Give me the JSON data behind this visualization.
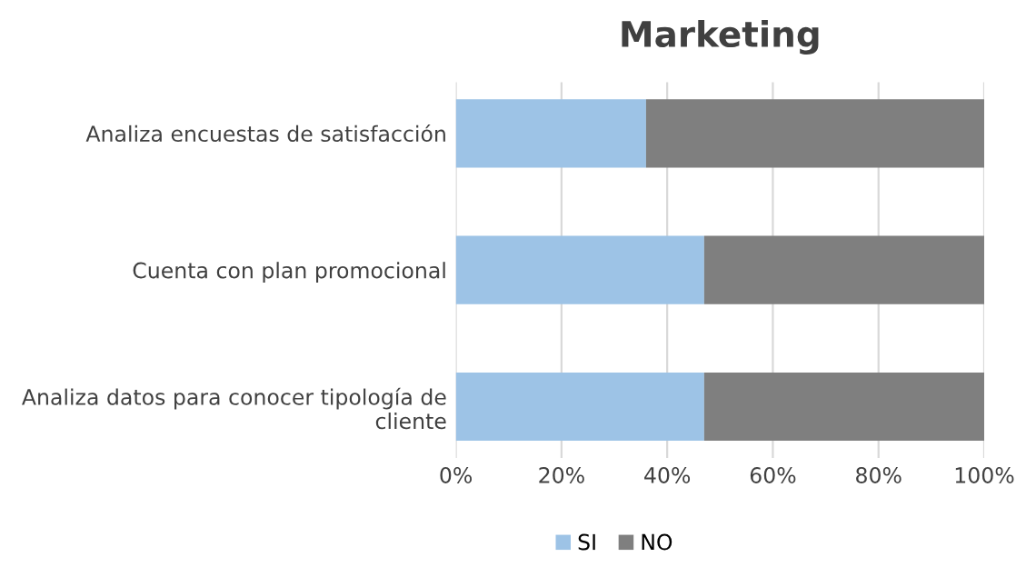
{
  "chart_data": {
    "type": "bar",
    "orientation": "horizontal",
    "stacked": true,
    "title": "Marketing",
    "categories": [
      "Analiza encuestas de satisfacción",
      "Cuenta con plan promocional",
      "Analiza datos para conocer tipología de\ncliente"
    ],
    "series": [
      {
        "name": "SI",
        "color": "#9dc3e6",
        "values": [
          36,
          47,
          47
        ]
      },
      {
        "name": "NO",
        "color": "#7f7f7f",
        "values": [
          64,
          53,
          53
        ]
      }
    ],
    "xlim": [
      0,
      100
    ],
    "xticks": [
      {
        "value": 0,
        "label": "0%"
      },
      {
        "value": 20,
        "label": "20%"
      },
      {
        "value": 40,
        "label": "40%"
      },
      {
        "value": 60,
        "label": "60%"
      },
      {
        "value": 80,
        "label": "80%"
      },
      {
        "value": 100,
        "label": "100%"
      }
    ],
    "grid": "x",
    "legend": "bottom"
  }
}
